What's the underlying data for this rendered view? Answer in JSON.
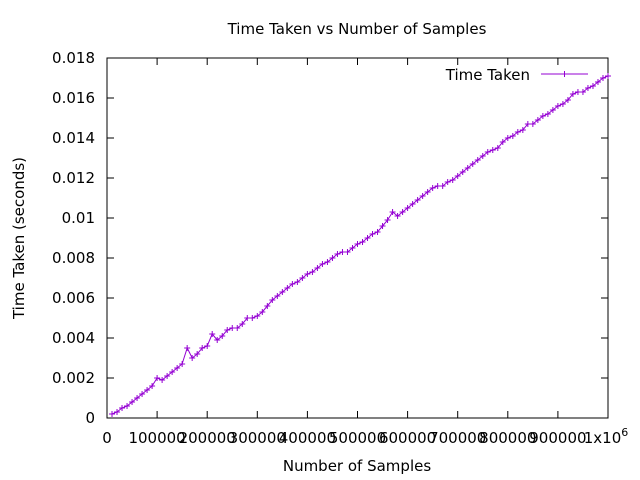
{
  "chart_data": {
    "type": "line",
    "title": "Time Taken vs Number of Samples",
    "xlabel": "Number of Samples",
    "ylabel": "Time Taken (seconds)",
    "xlim": [
      0,
      1000000
    ],
    "ylim": [
      0,
      0.018
    ],
    "grid": false,
    "legend_position": "top-right",
    "x_ticks": [
      {
        "value": 0,
        "label": "0"
      },
      {
        "value": 100000,
        "label": "100000"
      },
      {
        "value": 200000,
        "label": "200000"
      },
      {
        "value": 300000,
        "label": "300000"
      },
      {
        "value": 400000,
        "label": "400000"
      },
      {
        "value": 500000,
        "label": "500000"
      },
      {
        "value": 600000,
        "label": "600000"
      },
      {
        "value": 700000,
        "label": "700000"
      },
      {
        "value": 800000,
        "label": "800000"
      },
      {
        "value": 900000,
        "label": "900000"
      },
      {
        "value": 1000000,
        "label": "1x10",
        "exp": "6"
      }
    ],
    "y_ticks": [
      {
        "value": 0,
        "label": "0"
      },
      {
        "value": 0.002,
        "label": "0.002"
      },
      {
        "value": 0.004,
        "label": "0.004"
      },
      {
        "value": 0.006,
        "label": "0.006"
      },
      {
        "value": 0.008,
        "label": "0.008"
      },
      {
        "value": 0.01,
        "label": "0.01"
      },
      {
        "value": 0.012,
        "label": "0.012"
      },
      {
        "value": 0.014,
        "label": "0.014"
      },
      {
        "value": 0.016,
        "label": "0.016"
      },
      {
        "value": 0.018,
        "label": "0.018"
      }
    ],
    "series": [
      {
        "name": "Time Taken",
        "color": "#9400d3",
        "marker": "plus",
        "x": [
          10000,
          20000,
          30000,
          40000,
          50000,
          60000,
          70000,
          80000,
          90000,
          100000,
          110000,
          120000,
          130000,
          140000,
          150000,
          160000,
          170000,
          180000,
          190000,
          200000,
          210000,
          220000,
          230000,
          240000,
          250000,
          260000,
          270000,
          280000,
          290000,
          300000,
          310000,
          320000,
          330000,
          340000,
          350000,
          360000,
          370000,
          380000,
          390000,
          400000,
          410000,
          420000,
          430000,
          440000,
          450000,
          460000,
          470000,
          480000,
          490000,
          500000,
          510000,
          520000,
          530000,
          540000,
          550000,
          560000,
          570000,
          580000,
          590000,
          600000,
          610000,
          620000,
          630000,
          640000,
          650000,
          660000,
          670000,
          680000,
          690000,
          700000,
          710000,
          720000,
          730000,
          740000,
          750000,
          760000,
          770000,
          780000,
          790000,
          800000,
          810000,
          820000,
          830000,
          840000,
          850000,
          860000,
          870000,
          880000,
          890000,
          900000,
          910000,
          920000,
          930000,
          940000,
          950000,
          960000,
          970000,
          980000,
          990000,
          1000000
        ],
        "values": [
          0.0002,
          0.0003,
          0.0005,
          0.0006,
          0.0008,
          0.001,
          0.0012,
          0.0014,
          0.0016,
          0.002,
          0.0019,
          0.0021,
          0.0023,
          0.0025,
          0.0027,
          0.0035,
          0.003,
          0.0032,
          0.0035,
          0.0036,
          0.0042,
          0.0039,
          0.0041,
          0.0044,
          0.0045,
          0.0045,
          0.0047,
          0.005,
          0.005,
          0.0051,
          0.0053,
          0.0056,
          0.0059,
          0.0061,
          0.0063,
          0.0065,
          0.0067,
          0.0068,
          0.007,
          0.0072,
          0.0073,
          0.0075,
          0.0077,
          0.0078,
          0.008,
          0.0082,
          0.0083,
          0.0083,
          0.0085,
          0.0087,
          0.0088,
          0.009,
          0.0092,
          0.0093,
          0.0096,
          0.0099,
          0.0103,
          0.0101,
          0.0103,
          0.0105,
          0.0107,
          0.0109,
          0.0111,
          0.0113,
          0.0115,
          0.0116,
          0.0116,
          0.0118,
          0.0119,
          0.0121,
          0.0123,
          0.0125,
          0.0127,
          0.0129,
          0.0131,
          0.0133,
          0.0134,
          0.0135,
          0.0138,
          0.014,
          0.0141,
          0.0143,
          0.0144,
          0.0147,
          0.0147,
          0.0149,
          0.0151,
          0.0152,
          0.0154,
          0.0156,
          0.0157,
          0.0159,
          0.0162,
          0.0163,
          0.0163,
          0.0165,
          0.0166,
          0.0168,
          0.017,
          0.0171
        ]
      }
    ]
  }
}
